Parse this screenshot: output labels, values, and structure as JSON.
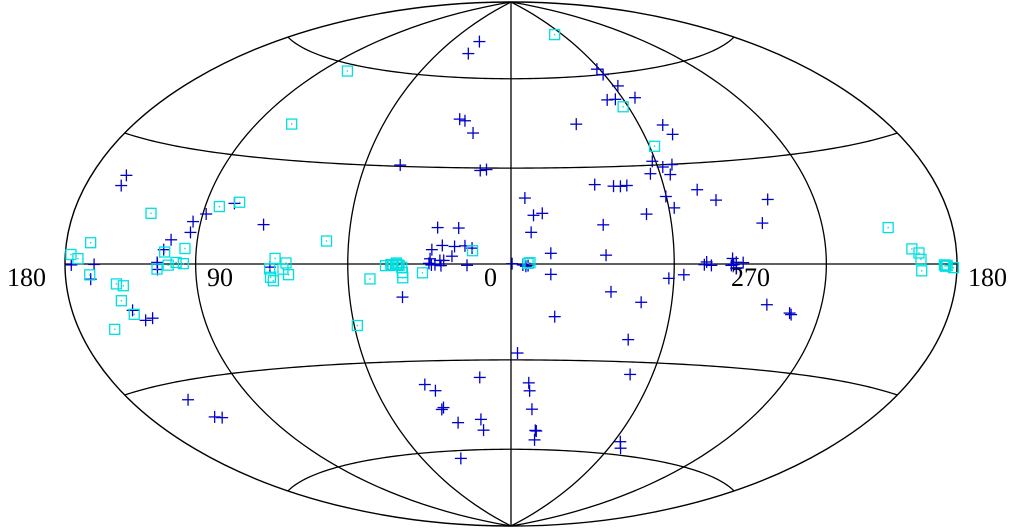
{
  "chart_data": {
    "type": "scatter",
    "projection": "hammer-aitoff",
    "coordinate_system": "galactic",
    "x_direction": "longitude increases to the left, centered on 0",
    "tick_labels": {
      "left": "180",
      "l90": "90",
      "center": "0",
      "l270": "270",
      "right": "180"
    },
    "parallels_deg": [
      -60,
      -30,
      30,
      60
    ],
    "meridians_deg": [
      -120,
      -60,
      0,
      60,
      120
    ],
    "colors": {
      "plus": "#0000cc",
      "square": "#00e0e0",
      "grid": "#000000",
      "background": "#ffffff"
    },
    "series": [
      {
        "marker": "plus",
        "points": [
          [
            165.5,
            -0.1
          ],
          [
            176.8,
            -0.2
          ],
          [
            167.5,
            -3.5
          ],
          [
            150.6,
            -11.4
          ],
          [
            146.1,
            -14.1
          ],
          [
            142.6,
            -13.7
          ],
          [
            131.2,
            6.3
          ],
          [
            133.9,
            3.7
          ],
          [
            136.5,
            0.4
          ],
          [
            136.4,
            -0.1
          ],
          [
            136.4,
            -1.4
          ],
          [
            123.4,
            8.4
          ],
          [
            123.3,
            11.3
          ],
          [
            118.6,
            13.5
          ],
          [
            108.1,
            16.8
          ],
          [
            162.5,
            21.2
          ],
          [
            162.2,
            18.7
          ],
          [
            150.8,
            -34.7
          ],
          [
            146.9,
            -40.1
          ],
          [
            143.6,
            -40.7
          ],
          [
            93.9,
            11.2
          ],
          [
            89.9,
            -0.9
          ],
          [
            45.4,
            30.4
          ],
          [
            27.1,
            11.2
          ],
          [
            19.3,
            11.1
          ],
          [
            16.8,
            5.6
          ],
          [
            20.6,
            5.4
          ],
          [
            14.2,
            4.9
          ],
          [
            29.5,
            1.6
          ],
          [
            29.9,
            0.2
          ],
          [
            27.7,
            -0.2
          ],
          [
            29.0,
            -0.3
          ],
          [
            21.5,
            2.4
          ],
          [
            24.5,
            1.1
          ],
          [
            25.5,
            -0.5
          ],
          [
            16.0,
            -0.4
          ],
          [
            25.1,
            5.7
          ],
          [
            28.9,
            4.4
          ],
          [
            25.9,
            1.1
          ],
          [
            -4.3,
            -0.3
          ],
          [
            -5.4,
            -0.7
          ],
          [
            -6.2,
            -0.5
          ],
          [
            -0.4,
            0.1
          ],
          [
            40.1,
            -10.1
          ],
          [
            37.6,
            -37.5
          ],
          [
            33.7,
            -39.6
          ],
          [
            -2.6,
            -27.8
          ],
          [
            -8.3,
            -40.0
          ],
          [
            -7.7,
            -37.4
          ],
          [
            -10.1,
            -46.1
          ],
          [
            -13.7,
            -56.6
          ],
          [
            -16.4,
            -16.3
          ],
          [
            -14.5,
            -3.2
          ],
          [
            -14.5,
            3.3
          ],
          [
            -7.4,
            9.8
          ],
          [
            -13.2,
            -53.3
          ],
          [
            -13.8,
            -53.5
          ],
          [
            14.9,
            -53.2
          ],
          [
            15.3,
            -49.5
          ],
          [
            33.4,
            -45.8
          ],
          [
            32.3,
            -45.2
          ],
          [
            13.3,
            -35.6
          ],
          [
            27.4,
            -50.4
          ],
          [
            34.3,
            -62.8
          ],
          [
            17.2,
            41.3
          ],
          [
            22.0,
            45.3
          ],
          [
            24.7,
            45.8
          ],
          [
            35.6,
            68.7
          ],
          [
            32.5,
            73.4
          ],
          [
            9.9,
            29.5
          ],
          [
            12.4,
            29.2
          ],
          [
            -5.3,
            20.5
          ],
          [
            -40.1,
            23.9
          ],
          [
            -42.8,
            23.8
          ],
          [
            -45.4,
            24.0
          ],
          [
            -56.1,
            27.4
          ],
          [
            -64.1,
            26.9
          ],
          [
            -62.1,
            16.8
          ],
          [
            -62.1,
            29.3
          ],
          [
            -58.6,
            31.2
          ],
          [
            -66.3,
            29.9
          ],
          [
            -73.0,
            22.0
          ],
          [
            -79.3,
            18.7
          ],
          [
            -59.8,
            20.3
          ],
          [
            -73.0,
            39.1
          ],
          [
            -71.1,
            42.2
          ],
          [
            -62.5,
            55.8
          ],
          [
            -59.3,
            60.0
          ],
          [
            -58.3,
            62.0
          ],
          [
            -66.8,
            51.5
          ],
          [
            -55.8,
            51.5
          ],
          [
            -51.3,
            51.5
          ],
          [
            -30.7,
            44.0
          ],
          [
            -32.8,
            24.5
          ],
          [
            -51.0,
            15.1
          ],
          [
            -34.2,
            12.0
          ],
          [
            -34.7,
            2.7
          ],
          [
            -36.8,
            -8.5
          ],
          [
            -48.4,
            -11.6
          ],
          [
            -86.4,
            0.4
          ],
          [
            -74.1,
            -0.4
          ],
          [
            -71.4,
            -0.2
          ],
          [
            -72.3,
            0.6
          ],
          [
            -63.7,
            -3.2
          ],
          [
            -58.1,
            -4.3
          ],
          [
            -45.7,
            -23.1
          ],
          [
            -50.4,
            -33.9
          ],
          [
            -63.7,
            -55.6
          ],
          [
            -67.1,
            -57.7
          ],
          [
            -97.4,
            -11.5
          ],
          [
            -107.5,
            -13.6
          ],
          [
            -108.3,
            -14.0
          ],
          [
            -95.6,
            11.6
          ],
          [
            -100.4,
            18.2
          ],
          [
            -82.3,
            1.6
          ],
          [
            -81.8,
            -0.4
          ],
          [
            -82.7,
            -0.2
          ],
          [
            -83.7,
            -1.3
          ],
          [
            -83.8,
            -1.1
          ],
          [
            -83.7,
            0.5
          ],
          [
            -8.4,
            15.1
          ],
          [
            -11.7,
            15.7
          ]
        ]
      },
      {
        "marker": "square",
        "points": [
          [
            167.9,
            4.9
          ],
          [
            167.8,
            -2.5
          ],
          [
            173.5,
            1.2
          ],
          [
            177.1,
            2.1
          ],
          [
            162.3,
            -15.5
          ],
          [
            154.6,
            -8.9
          ],
          [
            152.4,
            -5.3
          ],
          [
            155.5,
            -4.8
          ],
          [
            150.4,
            -12.4
          ],
          [
            125.2,
            0.1
          ],
          [
            131.7,
            -0.3
          ],
          [
            128.3,
            0.4
          ],
          [
            133.4,
            3.1
          ],
          [
            142.8,
            12.8
          ],
          [
            114.0,
            15.7
          ],
          [
            136.6,
            -1.3
          ],
          [
            106.1,
            17.2
          ],
          [
            103.2,
            40.4
          ],
          [
            105.1,
            57.9
          ],
          [
            124.8,
            4.1
          ],
          [
            90.0,
            -1.4
          ],
          [
            84.8,
            -1.5
          ],
          [
            87.9,
            1.6
          ],
          [
            83.6,
            0.3
          ],
          [
            82.7,
            -3.1
          ],
          [
            88.8,
            -4.8
          ],
          [
            89.8,
            -3.8
          ],
          [
            68.4,
            6.8
          ],
          [
            58.8,
            -18.5
          ],
          [
            51.8,
            -4.5
          ],
          [
            45.9,
            -0.5
          ],
          [
            43.9,
            -0.2
          ],
          [
            43.4,
            -0.4
          ],
          [
            43.1,
            -0.2
          ],
          [
            41.3,
            -0.4
          ],
          [
            40.9,
            -0.4
          ],
          [
            41.8,
            -0.1
          ],
          [
            41.9,
            0.3
          ],
          [
            39.6,
            -4.2
          ],
          [
            39.7,
            -2.6
          ],
          [
            32.3,
            -2.7
          ],
          [
            39.9,
            -1.0
          ],
          [
            14.0,
            4.1
          ],
          [
            -6.2,
            0.2
          ],
          [
            -6.9,
            0.4
          ],
          [
            -57.4,
            48.9
          ],
          [
            -62.2,
            35.8
          ],
          [
            -51.6,
            75.6
          ],
          [
            -148.8,
            9.0
          ],
          [
            -158.2,
            3.6
          ],
          [
            -162.2,
            1.1
          ],
          [
            -162.6,
            -1.6
          ],
          [
            -161.4,
            2.6
          ],
          [
            -174.1,
            -0.5
          ],
          [
            -178.2,
            -0.8
          ],
          [
            -175.0,
            -0.3
          ],
          [
            -174.8,
            -0.4
          ],
          [
            -173.6,
            -0.2
          ]
        ]
      }
    ]
  }
}
